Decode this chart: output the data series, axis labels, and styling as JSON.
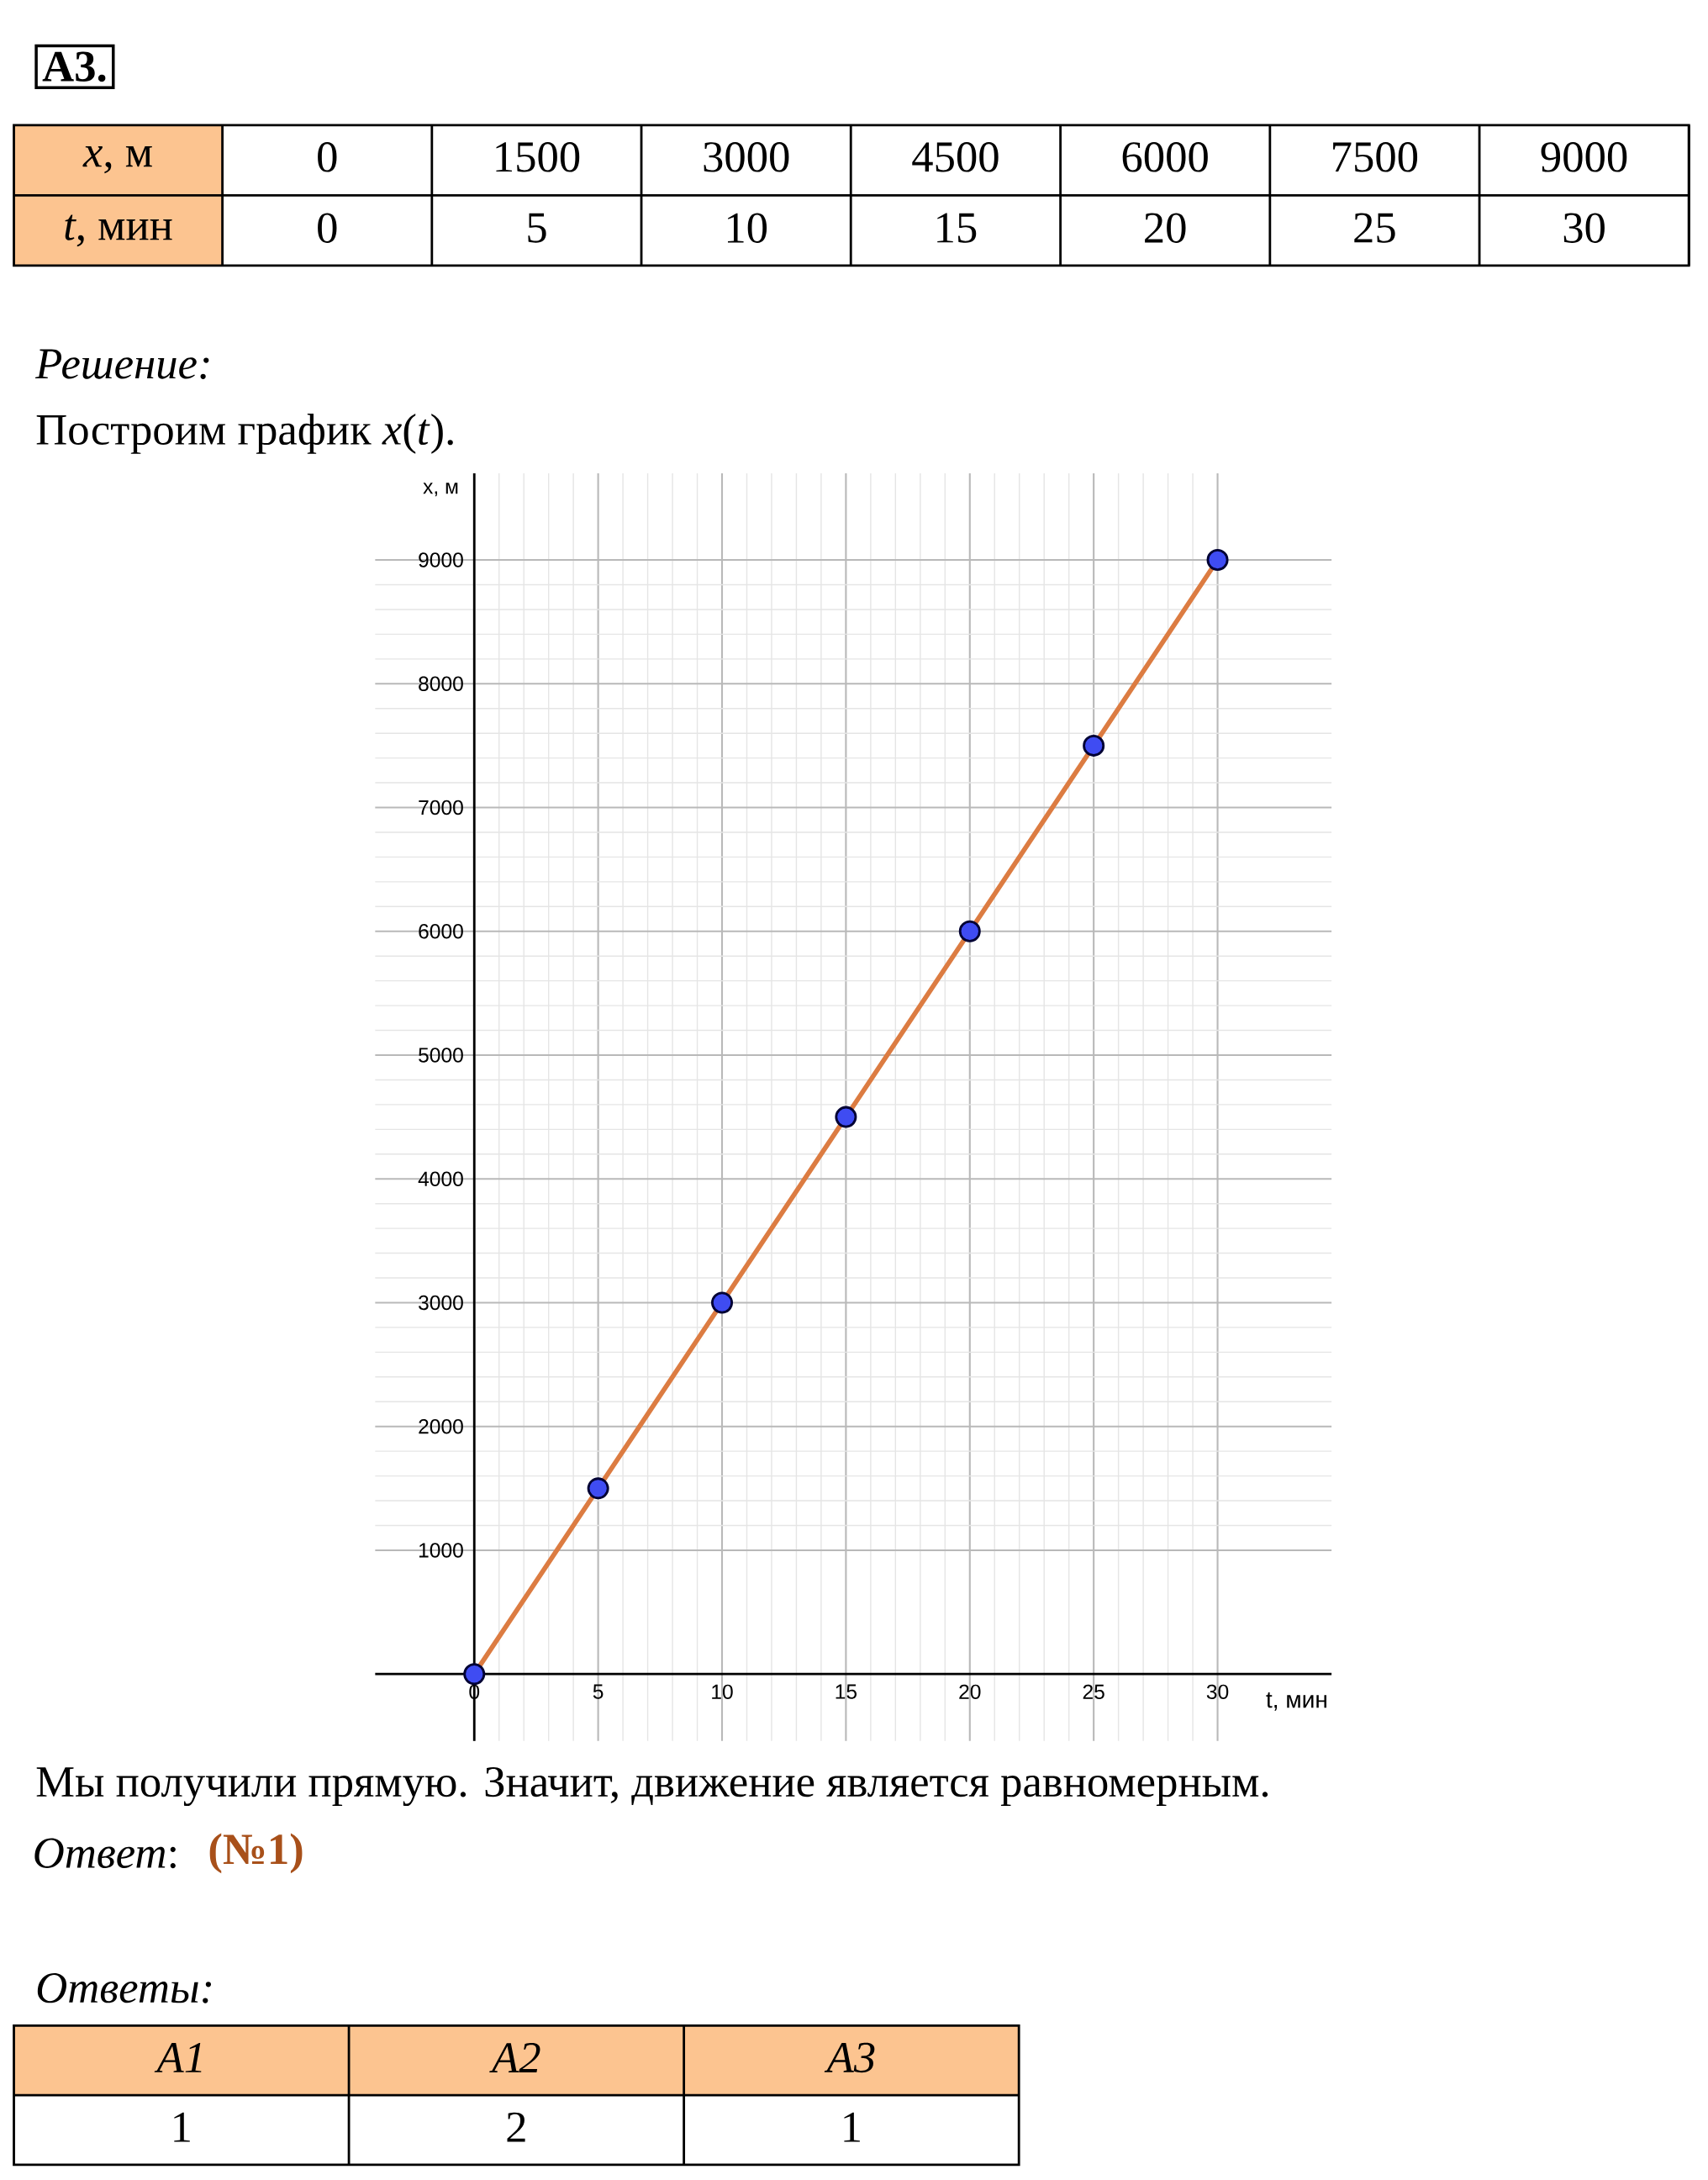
{
  "chart_data": {
    "type": "line",
    "title": "А3.",
    "subtitle": "Построим график *x*(*t*).",
    "xlabel": "t, мин",
    "ylabel": "x, м",
    "x": [
      0,
      5,
      10,
      15,
      20,
      25,
      30
    ],
    "series": [
      {
        "color": "#dc7c42",
        "colors": [
          "#3f4cf2",
          "#3f4cf2",
          "#3f4cf2",
          "#3f4cf2",
          "#3f4cf2",
          "#3f4cf2",
          "#3f4cf2"
        ],
        "values": [
          0,
          1500,
          3000,
          4500,
          6000,
          7500,
          9000
        ]
      }
    ],
    "xlim": [
      -4,
      34.6
    ],
    "ylim": [
      -540,
      9700
    ],
    "xticks": [
      0,
      5,
      10,
      15,
      20,
      25,
      30
    ],
    "yticks": [
      1000,
      2000,
      3000,
      4000,
      5000,
      6000,
      7000,
      8000,
      9000
    ],
    "grid": true,
    "marker": "circle",
    "annotations": [
      "Решение:",
      "*x*, м",
      "*t*, мин",
      "Мы получили прямую. Значит, движение является равномерным.",
      "*Ответ*:",
      "(№1)",
      "Ответы:",
      "*A1*",
      "*A2*",
      "*A3*",
      "1",
      "2",
      "1",
      "0",
      "1500",
      "3000",
      "4500",
      "6000",
      "7500",
      "9000",
      "0",
      "5",
      "10",
      "15",
      "20",
      "25",
      "30"
    ]
  }
}
